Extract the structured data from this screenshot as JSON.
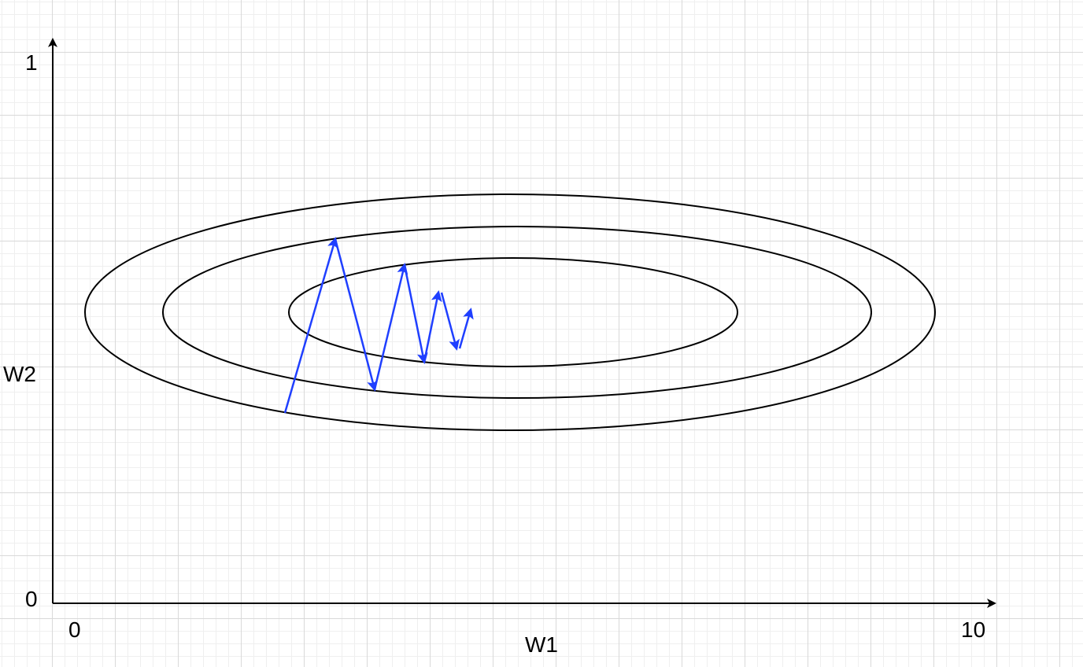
{
  "axes": {
    "x_label": "W1",
    "y_label": "W2",
    "x_tick_min": "0",
    "x_tick_max": "10",
    "y_tick_min": "0",
    "y_tick_max": "1",
    "axis_color": "#000000"
  },
  "contours": {
    "count": 3,
    "stroke_color": "#000000"
  },
  "path": {
    "color": "#1f3fff",
    "steps": 8,
    "description_style": "zigzag-arrows"
  }
}
